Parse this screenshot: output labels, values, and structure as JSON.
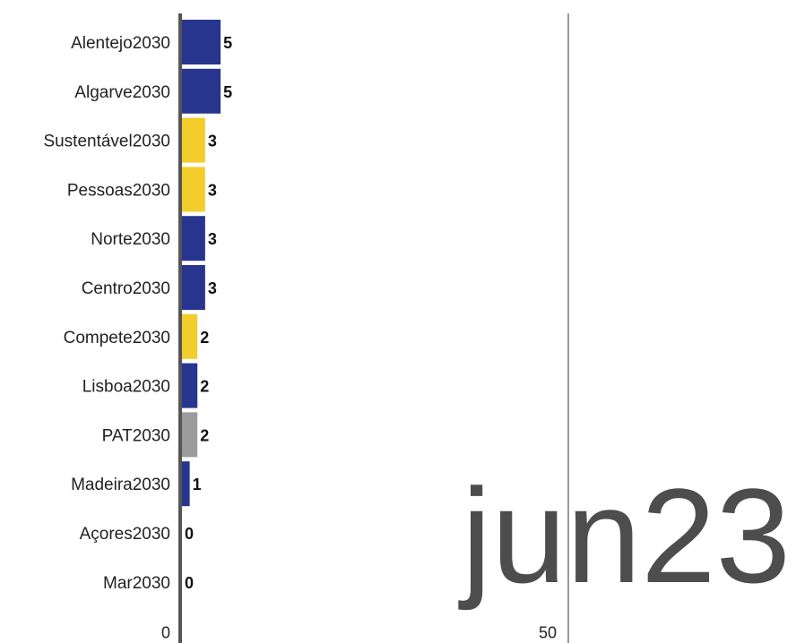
{
  "chart_data": {
    "type": "bar",
    "orientation": "horizontal",
    "period": "jun23",
    "categories": [
      "Alentejo2030",
      "Algarve2030",
      "Sustentável2030",
      "Pessoas2030",
      "Norte2030",
      "Centro2030",
      "Compete2030",
      "Lisboa2030",
      "PAT2030",
      "Madeira2030",
      "Açores2030",
      "Mar2030"
    ],
    "values": [
      5,
      5,
      3,
      3,
      3,
      3,
      2,
      2,
      2,
      1,
      0,
      0
    ],
    "bar_colors": [
      "#27358f",
      "#27358f",
      "#f2cd2b",
      "#f2cd2b",
      "#27358f",
      "#27358f",
      "#f2cd2b",
      "#27358f",
      "#9b9b9b",
      "#27358f",
      "#27358f",
      "#27358f"
    ],
    "x_ticks": [
      0,
      50
    ],
    "x_tick_labels": [
      "0",
      "50"
    ],
    "xlim": [
      0,
      75
    ],
    "grid": "vertical line at 50",
    "legend": "none"
  }
}
